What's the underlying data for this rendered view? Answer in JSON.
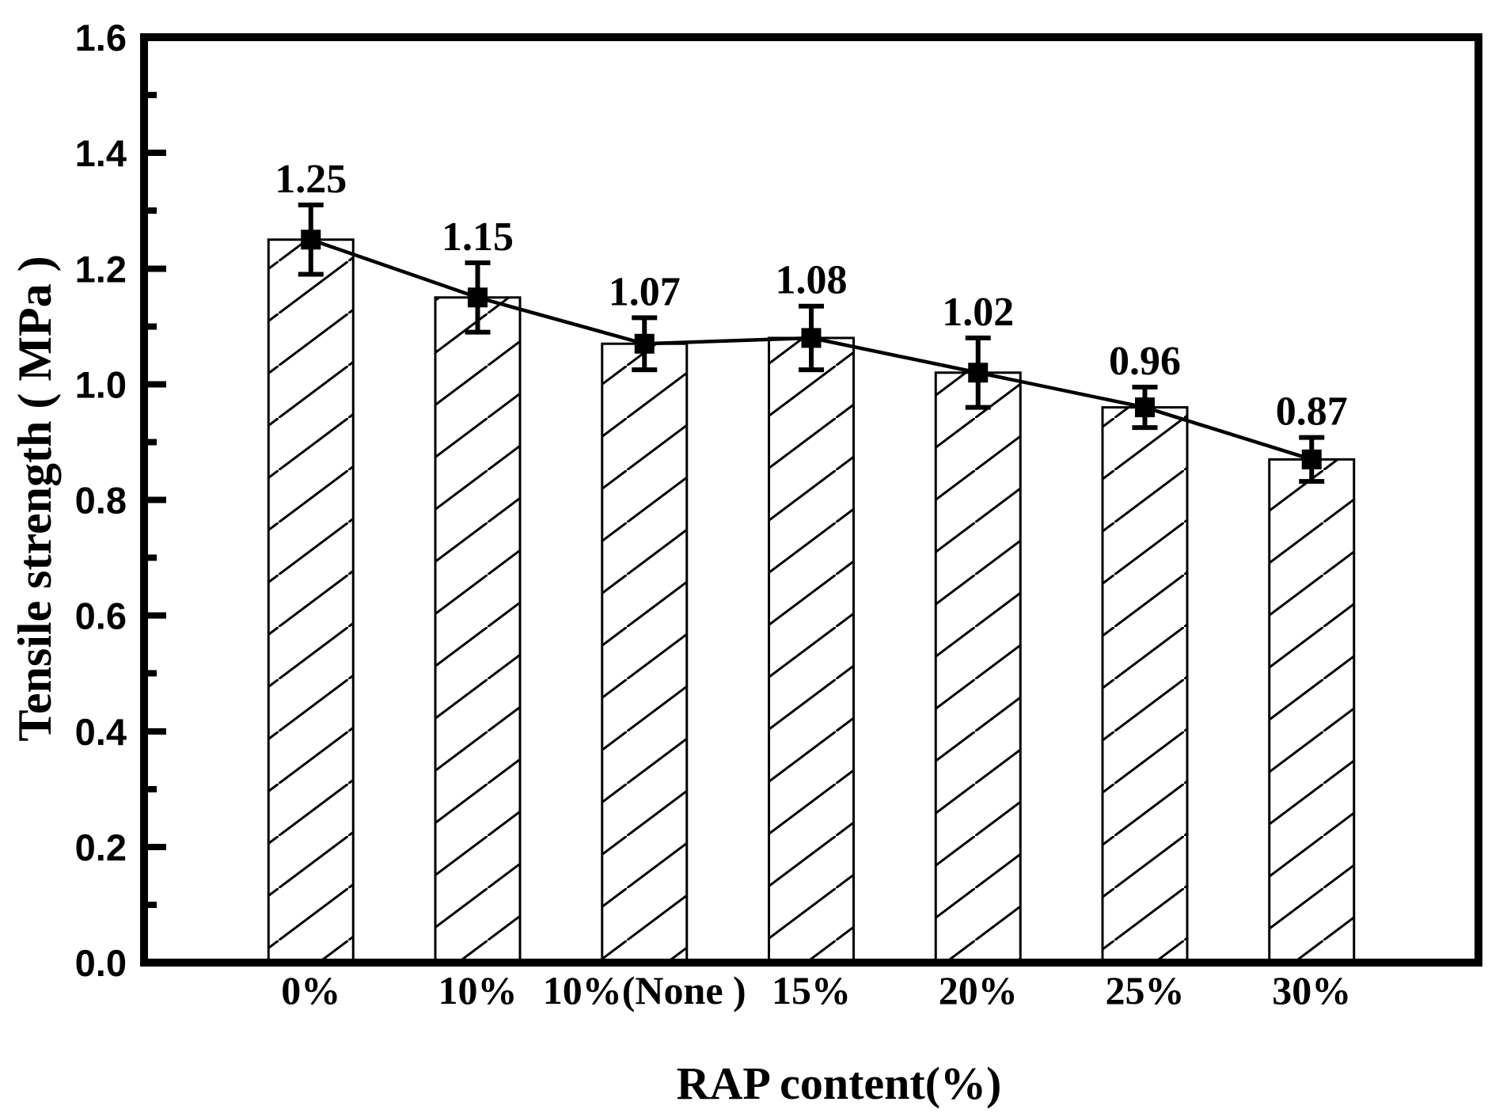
{
  "chart_data": {
    "type": "bar",
    "title": "",
    "xlabel": "RAP content(%)",
    "ylabel": "Tensile strength （MPa）",
    "categories": [
      "0%",
      "10%",
      "10%(None )",
      "15%",
      "20%",
      "25%",
      "30%"
    ],
    "values": [
      1.25,
      1.15,
      1.07,
      1.08,
      1.02,
      0.96,
      0.87
    ],
    "value_labels": [
      "1.25",
      "1.15",
      "1.07",
      "1.08",
      "1.02",
      "0.96",
      "0.87"
    ],
    "error_bars": [
      0.06,
      0.06,
      0.045,
      0.055,
      0.06,
      0.035,
      0.038
    ],
    "ylim": [
      0,
      1.6
    ],
    "ytick_labels": [
      "0.0",
      "0.2",
      "0.4",
      "0.6",
      "0.8",
      "1.0",
      "1.2",
      "1.4",
      "1.6"
    ],
    "ytick_step": 0.2,
    "yminor_step": 0.1,
    "overlay_series": "line-with-square-markers",
    "bar_hatch": "forward-diagonal",
    "grid": "off",
    "legend": "none",
    "colors": {
      "foreground": "#000000",
      "background": "#ffffff",
      "bar_fill": "#ffffff"
    }
  }
}
